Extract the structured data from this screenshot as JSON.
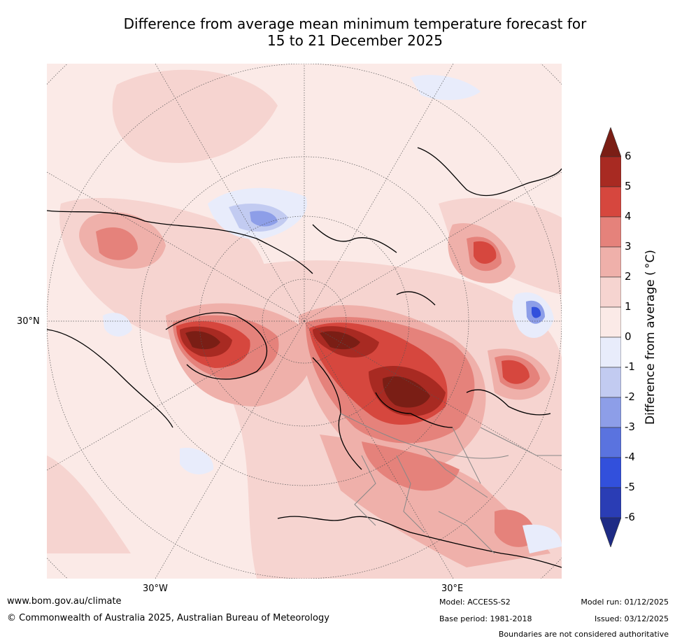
{
  "title_line1": "Difference from average mean minimum temperature forecast for",
  "title_line2": "15 to 21 December 2025",
  "map": {
    "lat_label": "30°N",
    "lon_label_west": "30°W",
    "lon_label_east": "30°E"
  },
  "colorbar": {
    "title": "Difference from average ( °C)",
    "ticks": [
      "6",
      "5",
      "4",
      "3",
      "2",
      "1",
      "0",
      "-1",
      "-2",
      "-3",
      "-4",
      "-5",
      "-6"
    ],
    "colors": {
      "over": "#7a1e15",
      "b6": "#a82a22",
      "b5": "#d6473e",
      "b4": "#e5827b",
      "b3": "#efb0aa",
      "b2": "#f6d4d0",
      "b1": "#fbeae7",
      "b0": "#e8ecfb",
      "bm1": "#c2cbf1",
      "bm2": "#8d9ee8",
      "bm3": "#5a73df",
      "bm4": "#3250dc",
      "bm5": "#2a3db5",
      "under": "#1e2b85"
    }
  },
  "footer": {
    "website": "www.bom.gov.au/climate",
    "copyright": "© Commonwealth of Australia 2025, Australian Bureau of Meteorology",
    "model": "Model: ACCESS-S2",
    "base_period": "Base period: 1981-2018",
    "model_run": "Model run: 01/12/2025",
    "issued": "Issued: 03/12/2025",
    "disclaimer": "Boundaries are not considered authoritative"
  }
}
